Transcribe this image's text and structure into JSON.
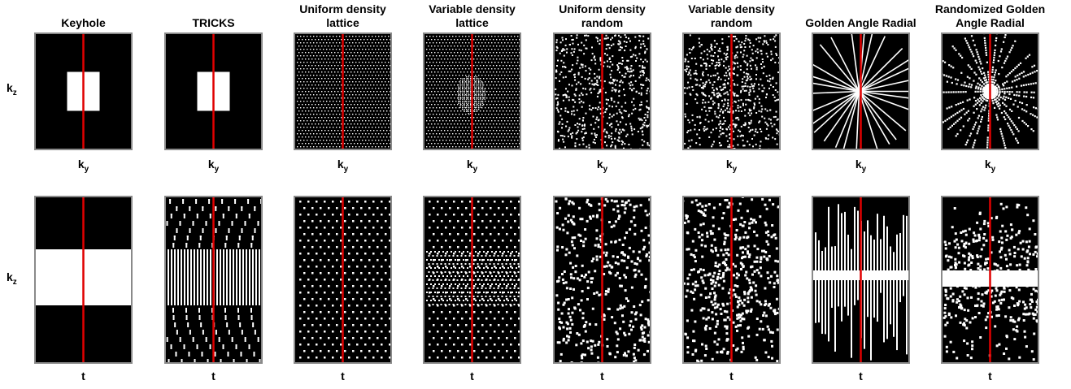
{
  "row_labels": {
    "top": {
      "main": "k",
      "sub": "z"
    },
    "bottom": {
      "main": "k",
      "sub": "z"
    }
  },
  "xlabels": {
    "top": {
      "main": "k",
      "sub": "y"
    },
    "bottom": {
      "main": "t",
      "sub": ""
    }
  },
  "columns": [
    {
      "id": "keyhole",
      "title": "Keyhole"
    },
    {
      "id": "tricks",
      "title": "TRICKS"
    },
    {
      "id": "udl",
      "title": "Uniform density\nlattice"
    },
    {
      "id": "vdl",
      "title": "Variable density\nlattice"
    },
    {
      "id": "udr",
      "title": "Uniform density\nrandom"
    },
    {
      "id": "vdr",
      "title": "Variable density\nrandom"
    },
    {
      "id": "gar",
      "title": "Golden Angle Radial"
    },
    {
      "id": "rgar",
      "title": "Randomized Golden\nAngle Radial"
    }
  ],
  "colors": {
    "background": "#000000",
    "sample": "#ffffff",
    "line": "#e00000",
    "frame": "#8a8a8a"
  }
}
